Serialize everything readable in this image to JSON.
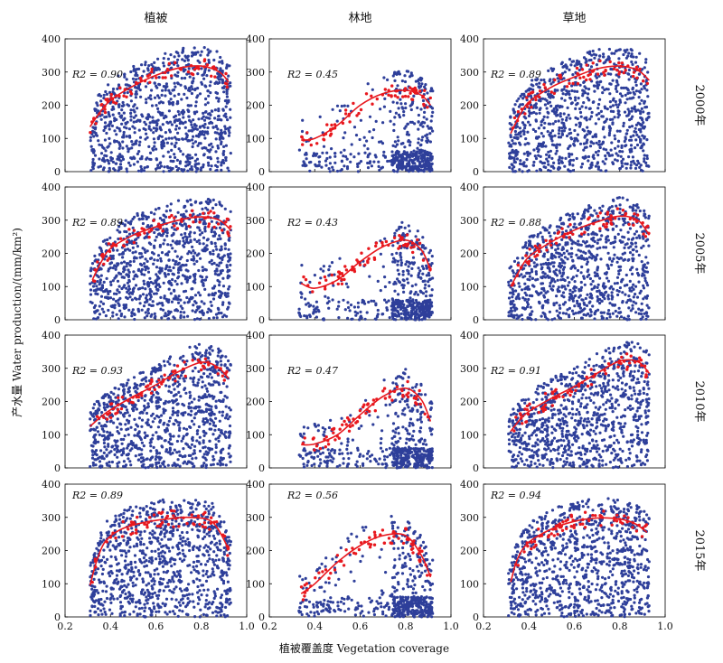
{
  "figure": {
    "column_titles": [
      "植被",
      "林地",
      "草地"
    ],
    "row_titles": [
      "2000年",
      "2005年",
      "2010年",
      "2015年"
    ],
    "xlabel": "植被覆盖度 Vegetation coverage",
    "ylabel": "产水量 Water production/(mm/km²)"
  },
  "chart_data": {
    "type": "scatter",
    "layout": "4x3 grid of scatter plots with fitted polynomial curves",
    "x_ticks": [
      "0.2",
      "0.4",
      "0.6",
      "0.8",
      "1.0"
    ],
    "y_ticks": [
      "0",
      "100",
      "200",
      "300",
      "400"
    ],
    "xlim": [
      0.2,
      1.0
    ],
    "ylim": [
      0,
      400
    ],
    "point_color": "#2e3f9a",
    "curve_color": "#e8181e",
    "panels": [
      {
        "row": 0,
        "col": 0,
        "r2_label": "R2 = 0.90",
        "r2": 0.9,
        "curve": {
          "x": [
            0.31,
            0.35,
            0.4,
            0.5,
            0.6,
            0.7,
            0.8,
            0.88,
            0.92
          ],
          "y": [
            135,
            175,
            215,
            258,
            290,
            312,
            318,
            300,
            270
          ]
        }
      },
      {
        "row": 0,
        "col": 1,
        "r2_label": "R2 = 0.45",
        "r2": 0.45,
        "curve": {
          "x": [
            0.34,
            0.4,
            0.5,
            0.6,
            0.7,
            0.8,
            0.87,
            0.91
          ],
          "y": [
            95,
            100,
            140,
            200,
            235,
            245,
            230,
            200
          ]
        }
      },
      {
        "row": 0,
        "col": 2,
        "r2_label": "R2 = 0.89",
        "r2": 0.89,
        "curve": {
          "x": [
            0.32,
            0.36,
            0.4,
            0.5,
            0.6,
            0.7,
            0.8,
            0.88,
            0.93
          ],
          "y": [
            115,
            170,
            210,
            255,
            285,
            310,
            318,
            305,
            275
          ]
        }
      },
      {
        "row": 1,
        "col": 0,
        "r2_label": "R2 = 0.89",
        "r2": 0.89,
        "curve": {
          "x": [
            0.32,
            0.36,
            0.4,
            0.5,
            0.6,
            0.7,
            0.8,
            0.88,
            0.93
          ],
          "y": [
            120,
            175,
            215,
            255,
            280,
            300,
            310,
            300,
            270
          ]
        }
      },
      {
        "row": 1,
        "col": 1,
        "r2_label": "R2 = 0.43",
        "r2": 0.43,
        "curve": {
          "x": [
            0.34,
            0.4,
            0.5,
            0.6,
            0.7,
            0.8,
            0.87,
            0.91
          ],
          "y": [
            110,
            95,
            120,
            175,
            220,
            240,
            210,
            150
          ]
        }
      },
      {
        "row": 1,
        "col": 2,
        "r2_label": "R2 = 0.88",
        "r2": 0.88,
        "curve": {
          "x": [
            0.32,
            0.36,
            0.4,
            0.5,
            0.6,
            0.7,
            0.8,
            0.88,
            0.93
          ],
          "y": [
            100,
            150,
            190,
            235,
            270,
            295,
            312,
            300,
            255
          ]
        }
      },
      {
        "row": 2,
        "col": 0,
        "r2_label": "R2 = 0.93",
        "r2": 0.93,
        "curve": {
          "x": [
            0.31,
            0.36,
            0.4,
            0.5,
            0.6,
            0.7,
            0.8,
            0.87,
            0.92
          ],
          "y": [
            125,
            155,
            175,
            215,
            250,
            290,
            318,
            305,
            270
          ]
        }
      },
      {
        "row": 2,
        "col": 1,
        "r2_label": "R2 = 0.47",
        "r2": 0.47,
        "curve": {
          "x": [
            0.34,
            0.4,
            0.5,
            0.6,
            0.7,
            0.8,
            0.87,
            0.91
          ],
          "y": [
            70,
            72,
            100,
            160,
            215,
            240,
            205,
            140
          ]
        }
      },
      {
        "row": 2,
        "col": 2,
        "r2_label": "R2 = 0.91",
        "r2": 0.91,
        "curve": {
          "x": [
            0.32,
            0.36,
            0.4,
            0.5,
            0.6,
            0.7,
            0.8,
            0.88,
            0.93
          ],
          "y": [
            110,
            145,
            170,
            210,
            245,
            285,
            322,
            320,
            285
          ]
        }
      },
      {
        "row": 3,
        "col": 0,
        "r2_label": "R2 = 0.89",
        "r2": 0.89,
        "curve": {
          "x": [
            0.31,
            0.34,
            0.38,
            0.45,
            0.55,
            0.65,
            0.75,
            0.85,
            0.92
          ],
          "y": [
            95,
            170,
            230,
            265,
            285,
            295,
            300,
            285,
            205
          ]
        }
      },
      {
        "row": 3,
        "col": 1,
        "r2_label": "R2 = 0.56",
        "r2": 0.56,
        "curve": {
          "x": [
            0.34,
            0.4,
            0.5,
            0.6,
            0.7,
            0.8,
            0.87,
            0.91
          ],
          "y": [
            70,
            100,
            165,
            215,
            245,
            245,
            185,
            120
          ]
        }
      },
      {
        "row": 3,
        "col": 2,
        "r2_label": "R2 = 0.94",
        "r2": 0.94,
        "curve": {
          "x": [
            0.32,
            0.35,
            0.4,
            0.5,
            0.6,
            0.7,
            0.8,
            0.87,
            0.92
          ],
          "y": [
            105,
            175,
            225,
            265,
            288,
            298,
            295,
            280,
            255
          ]
        }
      }
    ]
  }
}
